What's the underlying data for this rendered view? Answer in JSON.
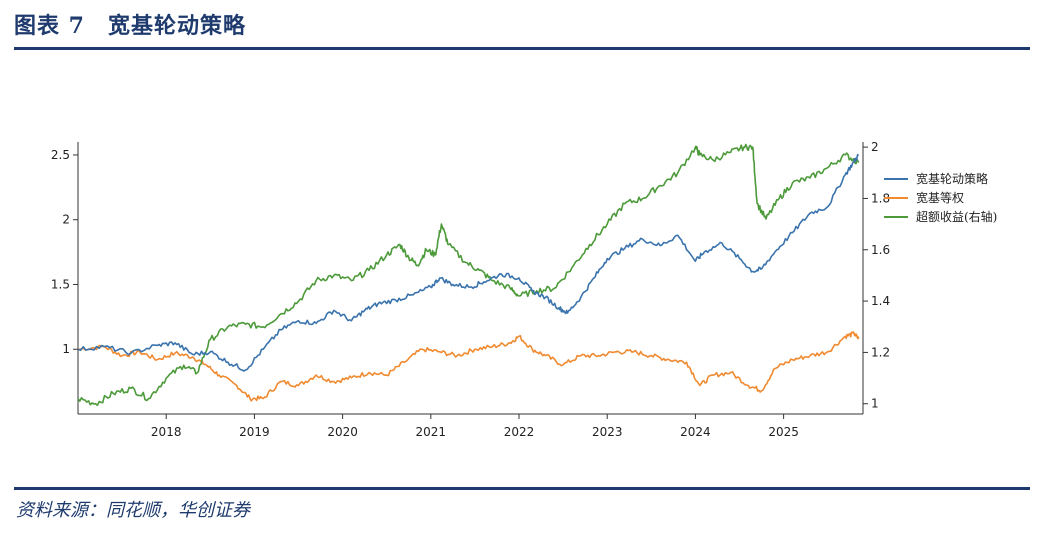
{
  "figure": {
    "title": "图表 7　宽基轮动策略",
    "source": "资料来源：同花顺，华创证券"
  },
  "colors": {
    "accent": "#1f3b6e",
    "strategy": "#3b74ad",
    "equal_weight": "#f08a31",
    "excess": "#4c9a3a"
  },
  "chart_data": {
    "type": "line",
    "x_ticks": [
      "2018",
      "2019",
      "2020",
      "2021",
      "2022",
      "2023",
      "2024",
      "2025"
    ],
    "x_range": [
      2017.0,
      2025.9
    ],
    "y_left": {
      "ticks": [
        "1",
        "1.5",
        "2",
        "2.5"
      ],
      "range": [
        0.5,
        2.6
      ]
    },
    "y_right": {
      "ticks": [
        "1",
        "1.2",
        "1.4",
        "1.6",
        "1.8",
        "2"
      ],
      "range": [
        0.96,
        2.02
      ]
    },
    "legend": {
      "position": "right"
    },
    "series": [
      {
        "name": "宽基轮动策略",
        "axis": "left",
        "x": [
          2017.0,
          2017.3,
          2017.6,
          2017.9,
          2018.1,
          2018.3,
          2018.5,
          2018.7,
          2018.9,
          2019.1,
          2019.3,
          2019.5,
          2019.7,
          2019.9,
          2020.1,
          2020.25,
          2020.4,
          2020.6,
          2020.8,
          2021.0,
          2021.1,
          2021.25,
          2021.45,
          2021.6,
          2021.8,
          2022.0,
          2022.15,
          2022.3,
          2022.45,
          2022.55,
          2022.7,
          2022.85,
          2023.0,
          2023.2,
          2023.4,
          2023.6,
          2023.8,
          2024.0,
          2024.1,
          2024.3,
          2024.5,
          2024.65,
          2024.75,
          2024.9,
          2025.1,
          2025.3,
          2025.5,
          2025.7,
          2025.8,
          2025.85
        ],
        "y": [
          1.0,
          1.02,
          0.97,
          1.03,
          1.05,
          0.96,
          0.98,
          0.9,
          0.84,
          1.0,
          1.15,
          1.22,
          1.2,
          1.3,
          1.22,
          1.3,
          1.35,
          1.38,
          1.42,
          1.48,
          1.55,
          1.5,
          1.48,
          1.52,
          1.58,
          1.55,
          1.45,
          1.4,
          1.32,
          1.28,
          1.4,
          1.55,
          1.7,
          1.78,
          1.85,
          1.8,
          1.88,
          1.68,
          1.75,
          1.82,
          1.7,
          1.6,
          1.62,
          1.75,
          1.9,
          2.05,
          2.1,
          2.35,
          2.45,
          2.5
        ]
      },
      {
        "name": "宽基等权",
        "axis": "left",
        "x": [
          2017.0,
          2017.3,
          2017.5,
          2017.7,
          2017.9,
          2018.1,
          2018.3,
          2018.45,
          2018.6,
          2018.8,
          2018.95,
          2019.1,
          2019.3,
          2019.5,
          2019.7,
          2019.9,
          2020.1,
          2020.3,
          2020.5,
          2020.7,
          2020.9,
          2021.1,
          2021.3,
          2021.5,
          2021.7,
          2021.9,
          2022.0,
          2022.15,
          2022.3,
          2022.5,
          2022.7,
          2022.9,
          2023.1,
          2023.3,
          2023.5,
          2023.7,
          2023.9,
          2024.05,
          2024.2,
          2024.4,
          2024.6,
          2024.75,
          2024.9,
          2025.1,
          2025.3,
          2025.5,
          2025.7,
          2025.8,
          2025.85
        ],
        "y": [
          1.0,
          1.02,
          0.95,
          0.98,
          0.92,
          0.97,
          0.94,
          0.88,
          0.8,
          0.72,
          0.62,
          0.62,
          0.75,
          0.72,
          0.8,
          0.75,
          0.78,
          0.82,
          0.8,
          0.9,
          1.0,
          0.98,
          0.95,
          1.0,
          1.02,
          1.05,
          1.1,
          1.0,
          0.95,
          0.88,
          0.95,
          0.95,
          0.98,
          0.98,
          0.95,
          0.92,
          0.9,
          0.72,
          0.8,
          0.82,
          0.72,
          0.68,
          0.85,
          0.92,
          0.95,
          0.98,
          1.1,
          1.12,
          1.08
        ]
      },
      {
        "name": "超额收益(右轴)",
        "axis": "right",
        "x": [
          2017.0,
          2017.2,
          2017.4,
          2017.6,
          2017.8,
          2018.0,
          2018.2,
          2018.35,
          2018.5,
          2018.7,
          2018.9,
          2019.1,
          2019.3,
          2019.5,
          2019.7,
          2019.9,
          2020.1,
          2020.3,
          2020.5,
          2020.65,
          2020.75,
          2020.85,
          2020.95,
          2021.05,
          2021.12,
          2021.2,
          2021.4,
          2021.55,
          2021.7,
          2021.9,
          2022.0,
          2022.2,
          2022.4,
          2022.6,
          2022.8,
          2023.0,
          2023.2,
          2023.4,
          2023.6,
          2023.8,
          2024.0,
          2024.05,
          2024.2,
          2024.4,
          2024.55,
          2024.65,
          2024.7,
          2024.8,
          2024.95,
          2025.1,
          2025.3,
          2025.5,
          2025.7,
          2025.85
        ],
        "y": [
          1.02,
          1.0,
          1.04,
          1.06,
          1.02,
          1.1,
          1.15,
          1.12,
          1.25,
          1.3,
          1.31,
          1.3,
          1.35,
          1.4,
          1.48,
          1.5,
          1.48,
          1.52,
          1.58,
          1.62,
          1.57,
          1.54,
          1.6,
          1.58,
          1.7,
          1.62,
          1.55,
          1.52,
          1.48,
          1.45,
          1.42,
          1.44,
          1.45,
          1.53,
          1.62,
          1.7,
          1.78,
          1.8,
          1.85,
          1.9,
          2.0,
          1.97,
          1.95,
          1.98,
          2.0,
          2.0,
          1.78,
          1.72,
          1.8,
          1.86,
          1.88,
          1.92,
          1.97,
          1.94
        ]
      }
    ]
  }
}
